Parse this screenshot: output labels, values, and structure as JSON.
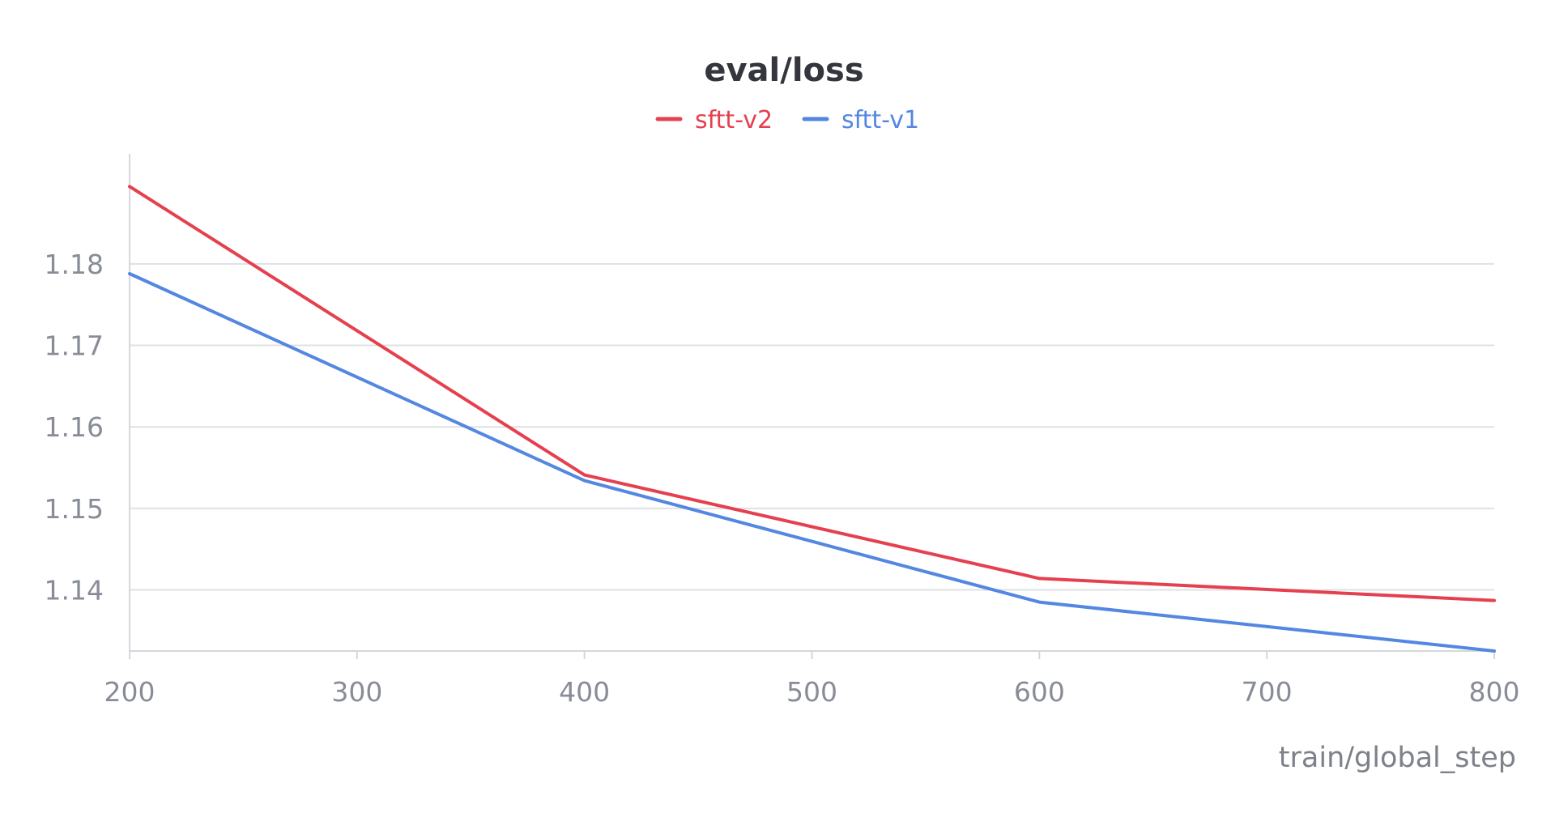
{
  "chart_data": {
    "type": "line",
    "title": "eval/loss",
    "xlabel": "train/global_step",
    "ylabel": "",
    "x": [
      200,
      400,
      600,
      800
    ],
    "series": [
      {
        "name": "sftt-v2",
        "color": "#e5404f",
        "values": [
          1.1895,
          1.1541,
          1.1414,
          1.1387
        ]
      },
      {
        "name": "sftt-v1",
        "color": "#5387e1",
        "values": [
          1.1788,
          1.1534,
          1.1385,
          1.1325
        ]
      }
    ],
    "xlim": [
      200,
      800
    ],
    "ylim": [
      1.1325,
      1.1935
    ],
    "x_ticks": [
      "200",
      "300",
      "400",
      "500",
      "600",
      "700",
      "800"
    ],
    "y_ticks": [
      "1.14",
      "1.15",
      "1.16",
      "1.17",
      "1.18"
    ],
    "grid": true,
    "legend_position": "top-center"
  }
}
